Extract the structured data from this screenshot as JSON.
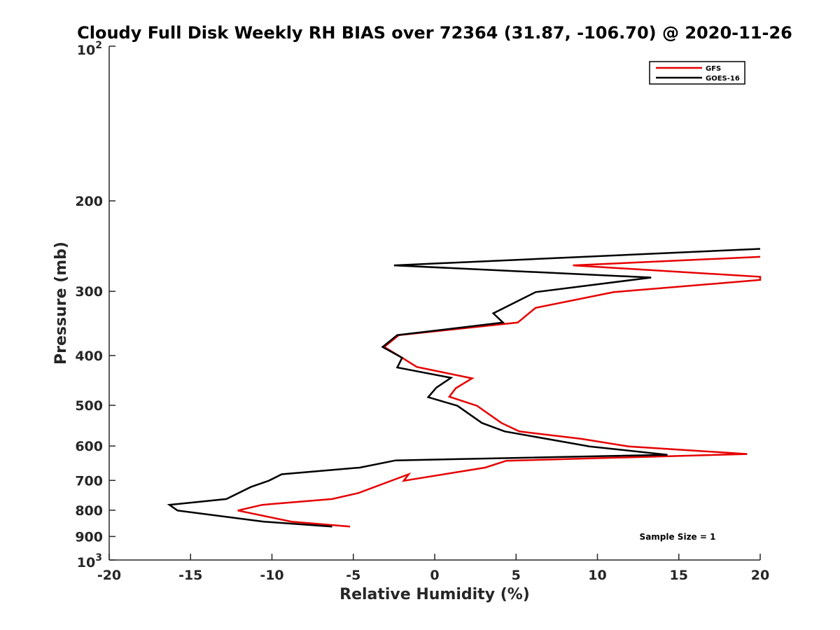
{
  "chart_data": {
    "type": "line",
    "title": "Cloudy Full Disk Weekly RH BIAS over 72364 (31.87, -106.70) @ 2020-11-26",
    "xlabel": "Relative Humidity (%)",
    "ylabel": "Pressure (mb)",
    "xlim": [
      -20,
      20
    ],
    "ylim": [
      100,
      1000
    ],
    "y_scale": "log",
    "y_reversed": true,
    "grid": false,
    "legend_position": "top-right",
    "x_ticks": [
      -20,
      -15,
      -10,
      -5,
      0,
      5,
      10,
      15,
      20
    ],
    "x_tick_labels": [
      "-20",
      "-15",
      "-10",
      "-5",
      "0",
      "5",
      "10",
      "15",
      "20"
    ],
    "y_ticks": [
      200,
      300,
      400,
      500,
      600,
      700,
      800,
      900
    ],
    "y_tick_labels": [
      "200",
      "300",
      "400",
      "500",
      "600",
      "700",
      "800",
      "900"
    ],
    "y_end_labels": {
      "top_base": "10",
      "top_exp": "2",
      "bottom_base": "10",
      "bottom_exp": "3"
    },
    "annotation": "Sample Size = 1",
    "series": [
      {
        "name": "GFS",
        "color": "#e60000",
        "points": [
          [
            20.0,
            257
          ],
          [
            8.5,
            267
          ],
          [
            20.0,
            281
          ],
          [
            20.0,
            285
          ],
          [
            11.0,
            301
          ],
          [
            6.2,
            323
          ],
          [
            5.1,
            345
          ],
          [
            -2.2,
            365
          ],
          [
            -3.1,
            385
          ],
          [
            -2.0,
            404
          ],
          [
            -1.1,
            421
          ],
          [
            2.3,
            443
          ],
          [
            1.3,
            463
          ],
          [
            0.9,
            481
          ],
          [
            2.6,
            501
          ],
          [
            4.1,
            541
          ],
          [
            5.2,
            562
          ],
          [
            9.0,
            581
          ],
          [
            11.9,
            601
          ],
          [
            19.2,
            622
          ],
          [
            4.4,
            641
          ],
          [
            3.1,
            661
          ],
          [
            -1.9,
            701
          ],
          [
            -1.6,
            681
          ],
          [
            -4.7,
            741
          ],
          [
            -6.3,
            761
          ],
          [
            -10.6,
            781
          ],
          [
            -12.1,
            801
          ],
          [
            -8.8,
            842
          ],
          [
            -5.2,
            861
          ]
        ]
      },
      {
        "name": "GOES-16",
        "color": "#000000",
        "points": [
          [
            20.0,
            248
          ],
          [
            -2.5,
            267
          ],
          [
            13.3,
            282
          ],
          [
            6.2,
            301
          ],
          [
            3.6,
            331
          ],
          [
            4.2,
            345
          ],
          [
            -2.3,
            365
          ],
          [
            -3.2,
            385
          ],
          [
            -2.0,
            404
          ],
          [
            -2.3,
            422
          ],
          [
            1.0,
            442
          ],
          [
            0.1,
            462
          ],
          [
            -0.4,
            482
          ],
          [
            1.4,
            501
          ],
          [
            2.9,
            541
          ],
          [
            4.3,
            562
          ],
          [
            9.5,
            601
          ],
          [
            14.3,
            624
          ],
          [
            -2.4,
            640
          ],
          [
            -4.6,
            661
          ],
          [
            -9.4,
            681
          ],
          [
            -10.2,
            701
          ],
          [
            -11.3,
            721
          ],
          [
            -12.8,
            761
          ],
          [
            -16.3,
            781
          ],
          [
            -15.8,
            801
          ],
          [
            -10.5,
            842
          ],
          [
            -6.3,
            861
          ]
        ]
      }
    ]
  }
}
